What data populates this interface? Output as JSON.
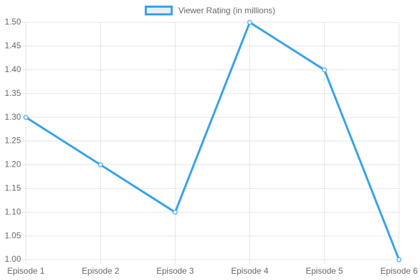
{
  "chart_data": {
    "type": "line",
    "categories": [
      "Episode 1",
      "Episode 2",
      "Episode 3",
      "Episode 4",
      "Episode 5",
      "Episode 6"
    ],
    "series": [
      {
        "name": "Viewer Rating (in millions)",
        "color": "#36a2eb",
        "values": [
          1.3,
          1.2,
          1.1,
          1.5,
          1.4,
          1.0
        ]
      }
    ],
    "ylim": [
      1.0,
      1.5
    ],
    "yticks": [
      {
        "value": 1.0,
        "label": "1.00"
      },
      {
        "value": 1.05,
        "label": "1.05"
      },
      {
        "value": 1.1,
        "label": "1.10"
      },
      {
        "value": 1.15,
        "label": "1.15"
      },
      {
        "value": 1.2,
        "label": "1.20"
      },
      {
        "value": 1.25,
        "label": "1.25"
      },
      {
        "value": 1.3,
        "label": "1.30"
      },
      {
        "value": 1.35,
        "label": "1.35"
      },
      {
        "value": 1.4,
        "label": "1.40"
      },
      {
        "value": 1.45,
        "label": "1.45"
      },
      {
        "value": 1.5,
        "label": "1.50"
      }
    ],
    "grid": true,
    "legend": "top"
  }
}
